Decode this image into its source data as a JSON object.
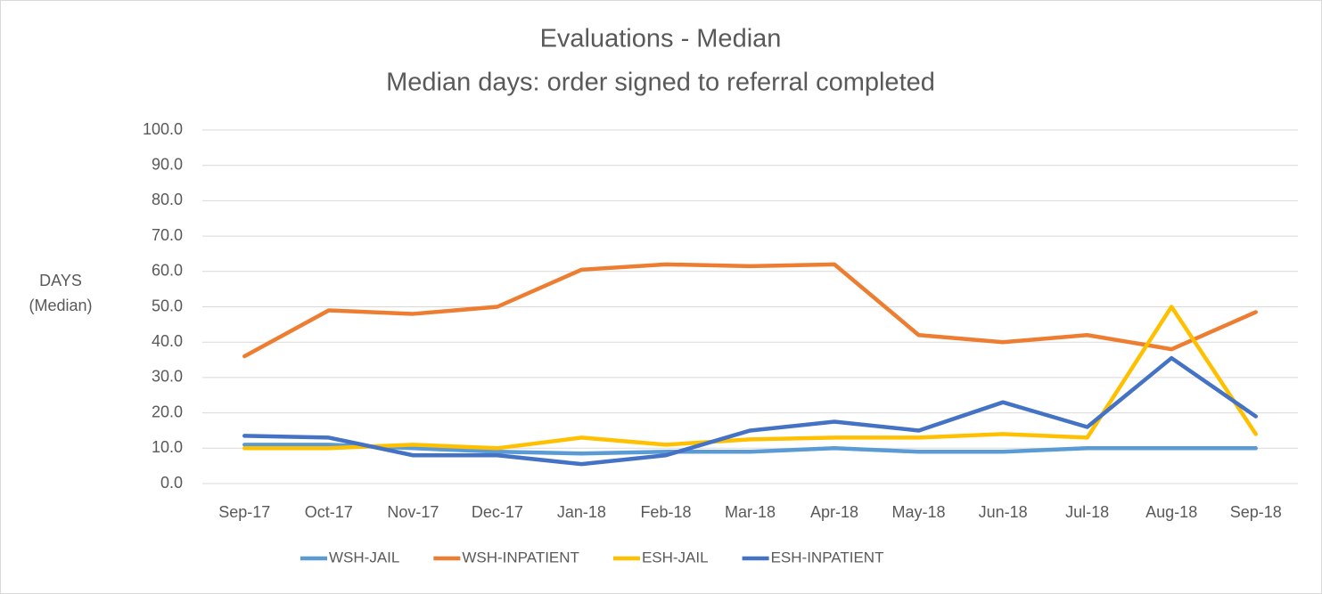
{
  "chart_data": {
    "type": "line",
    "title": [
      "Evaluations - Median",
      "Median days: order signed to referral completed"
    ],
    "ylabel": [
      "DAYS",
      "(Median)"
    ],
    "categories": [
      "Sep-17",
      "Oct-17",
      "Nov-17",
      "Dec-17",
      "Jan-18",
      "Feb-18",
      "Mar-18",
      "Apr-18",
      "May-18",
      "Jun-18",
      "Jul-18",
      "Aug-18",
      "Sep-18"
    ],
    "series": [
      {
        "name": "WSH-JAIL",
        "color": "#5b9bd5",
        "values": [
          11,
          11,
          10,
          9,
          8.5,
          9,
          9,
          10,
          9,
          9,
          10,
          10,
          10
        ]
      },
      {
        "name": "WSH-INPATIENT",
        "color": "#ed7d31",
        "values": [
          36,
          49,
          48,
          50,
          60.5,
          62,
          61.5,
          62,
          42,
          40,
          42,
          38,
          48.5
        ]
      },
      {
        "name": "ESH-JAIL",
        "color": "#ffc000",
        "values": [
          10,
          10,
          11,
          10,
          13,
          11,
          12.5,
          13,
          13,
          14,
          13,
          50,
          14
        ]
      },
      {
        "name": "ESH-INPATIENT",
        "color": "#4472c4",
        "values": [
          13.5,
          13,
          8,
          8,
          5.5,
          8,
          15,
          17.5,
          15,
          23,
          16,
          35.5,
          19
        ]
      }
    ],
    "ylim": [
      0,
      100
    ],
    "yticks": [
      {
        "value": 0,
        "label": "0.0"
      },
      {
        "value": 10,
        "label": "10.0"
      },
      {
        "value": 20,
        "label": "20.0"
      },
      {
        "value": 30,
        "label": "30.0"
      },
      {
        "value": 40,
        "label": "40.0"
      },
      {
        "value": 50,
        "label": "50.0"
      },
      {
        "value": 60,
        "label": "60.0"
      },
      {
        "value": 70,
        "label": "70.0"
      },
      {
        "value": 80,
        "label": "80.0"
      },
      {
        "value": 90,
        "label": "90.0"
      },
      {
        "value": 100,
        "label": "100.0"
      }
    ],
    "grid": true,
    "legend": "bottom"
  }
}
